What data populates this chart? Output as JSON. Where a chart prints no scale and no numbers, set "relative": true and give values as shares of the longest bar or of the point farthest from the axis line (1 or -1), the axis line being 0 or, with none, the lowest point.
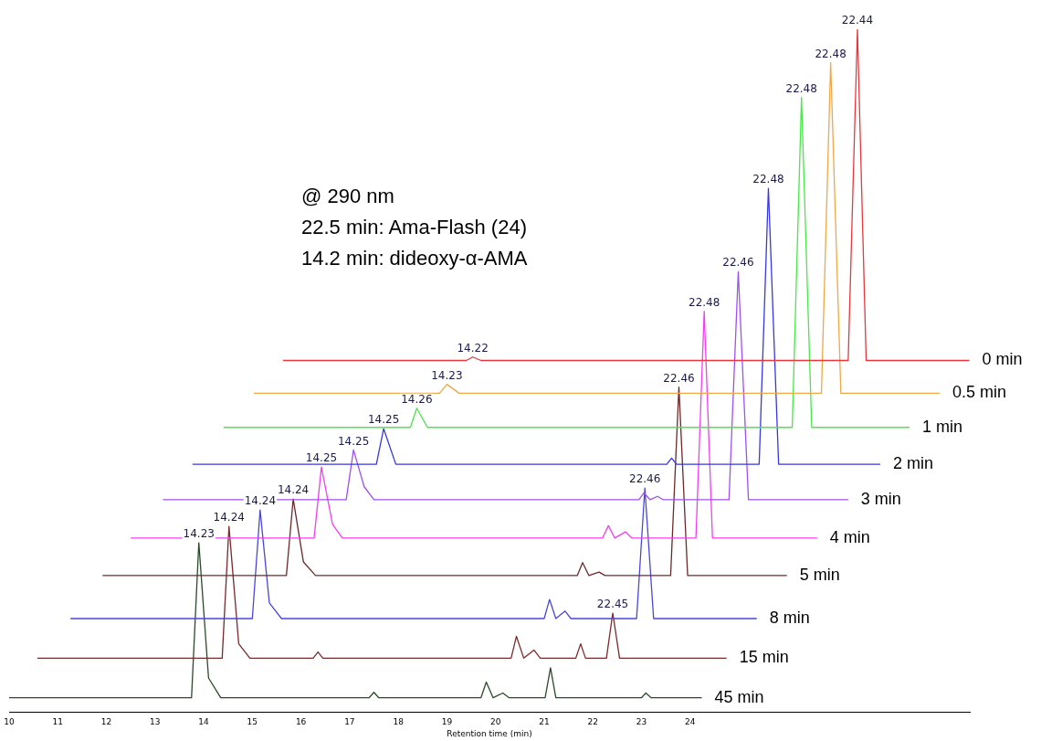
{
  "chart_data": {
    "type": "line",
    "relative": true,
    "xlabel": "Retention time (min)",
    "xlim": [
      10,
      29.75
    ],
    "xticks": [
      10,
      11,
      12,
      13,
      14,
      15,
      16,
      17,
      18,
      19,
      20,
      21,
      22,
      23,
      24
    ],
    "grid": false,
    "legend": false,
    "marker": "none",
    "line_style": "solid",
    "series": [
      {
        "name": "0 min",
        "color": "#e8383d",
        "x": [
          15.63,
          19.4,
          19.53,
          19.7,
          27.25,
          27.44,
          27.62,
          29.74
        ],
        "values": [
          0.515,
          0.515,
          0.52,
          0.515,
          0.515,
          1.0,
          0.515,
          0.515
        ]
      },
      {
        "name": "0.5 min",
        "color": "#f0a848",
        "x": [
          15.03,
          18.85,
          19.0,
          19.25,
          26.7,
          26.89,
          27.1,
          29.13
        ],
        "values": [
          0.467,
          0.467,
          0.48,
          0.467,
          0.467,
          0.951,
          0.467,
          0.467
        ]
      },
      {
        "name": "1 min",
        "color": "#48e848",
        "x": [
          14.41,
          18.25,
          18.38,
          18.6,
          26.1,
          26.29,
          26.5,
          28.51
        ],
        "values": [
          0.417,
          0.417,
          0.445,
          0.417,
          0.417,
          0.9,
          0.417,
          0.417
        ]
      },
      {
        "name": "2 min",
        "color": "#3838e0",
        "x": [
          13.77,
          17.55,
          17.7,
          17.95,
          23.52,
          23.62,
          23.72,
          25.42,
          25.61,
          25.82,
          27.91
        ],
        "values": [
          0.363,
          0.363,
          0.415,
          0.363,
          0.363,
          0.372,
          0.363,
          0.363,
          0.767,
          0.363,
          0.363
        ]
      },
      {
        "name": "3 min",
        "color": "#a050f0",
        "x": [
          13.16,
          16.93,
          17.08,
          17.3,
          17.5,
          22.95,
          23.05,
          23.18,
          23.33,
          23.45,
          24.8,
          24.99,
          25.2,
          27.25
        ],
        "values": [
          0.311,
          0.311,
          0.384,
          0.33,
          0.311,
          0.311,
          0.321,
          0.311,
          0.316,
          0.311,
          0.311,
          0.645,
          0.311,
          0.311
        ]
      },
      {
        "name": "4 min",
        "color": "#f040f0",
        "x": [
          12.5,
          16.27,
          16.42,
          16.65,
          16.85,
          22.2,
          22.32,
          22.45,
          22.67,
          22.8,
          24.12,
          24.29,
          24.46,
          26.61
        ],
        "values": [
          0.255,
          0.255,
          0.359,
          0.275,
          0.255,
          0.255,
          0.273,
          0.255,
          0.264,
          0.255,
          0.255,
          0.587,
          0.255,
          0.255
        ]
      },
      {
        "name": "5 min",
        "color": "#6b2a2a",
        "x": [
          11.92,
          15.7,
          15.84,
          16.05,
          16.3,
          21.68,
          21.79,
          21.92,
          22.13,
          22.25,
          23.6,
          23.77,
          23.95,
          25.99
        ],
        "values": [
          0.2,
          0.2,
          0.312,
          0.22,
          0.2,
          0.2,
          0.219,
          0.2,
          0.205,
          0.2,
          0.2,
          0.476,
          0.2,
          0.2
        ]
      },
      {
        "name": "8 min",
        "color": "#4848d8",
        "x": [
          11.26,
          15.0,
          15.16,
          15.35,
          15.6,
          21.0,
          21.11,
          21.24,
          21.43,
          21.55,
          22.9,
          23.07,
          23.25,
          25.37
        ],
        "values": [
          0.137,
          0.137,
          0.296,
          0.16,
          0.137,
          0.137,
          0.165,
          0.137,
          0.148,
          0.137,
          0.137,
          0.328,
          0.137,
          0.137
        ]
      },
      {
        "name": "15 min",
        "color": "#7a2a2a",
        "x": [
          10.58,
          14.38,
          14.52,
          14.72,
          14.95,
          16.25,
          16.35,
          16.45,
          20.32,
          20.43,
          20.58,
          20.79,
          20.92,
          21.65,
          21.75,
          21.85,
          22.28,
          22.41,
          22.55,
          24.75
        ],
        "values": [
          0.079,
          0.079,
          0.272,
          0.1,
          0.079,
          0.079,
          0.088,
          0.079,
          0.079,
          0.111,
          0.079,
          0.091,
          0.079,
          0.079,
          0.1,
          0.079,
          0.079,
          0.145,
          0.079,
          0.079
        ]
      },
      {
        "name": "45 min",
        "color": "#2a4a2a",
        "x": [
          10.0,
          13.75,
          13.9,
          14.1,
          14.35,
          17.4,
          17.5,
          17.6,
          19.7,
          19.81,
          19.95,
          20.15,
          20.28,
          21.02,
          21.13,
          21.24,
          23.0,
          23.09,
          23.2,
          24.24
        ],
        "values": [
          0.021,
          0.021,
          0.248,
          0.05,
          0.021,
          0.021,
          0.029,
          0.021,
          0.021,
          0.044,
          0.021,
          0.028,
          0.021,
          0.021,
          0.065,
          0.021,
          0.021,
          0.028,
          0.021,
          0.021
        ]
      }
    ],
    "annotations": [
      "@ 290 nm",
      "22.5 min: Ama-Flash (24)",
      "14.2 min: dideoxy-α-AMA",
      {
        "text": "14.22",
        "x": 19.53,
        "y": 0.52
      },
      {
        "text": "22.44",
        "x": 27.44,
        "y": 1.0
      },
      {
        "text": "14.23",
        "x": 19.0,
        "y": 0.48
      },
      {
        "text": "22.48",
        "x": 26.89,
        "y": 0.951
      },
      {
        "text": "14.26",
        "x": 18.38,
        "y": 0.445
      },
      {
        "text": "22.48",
        "x": 26.29,
        "y": 0.9
      },
      {
        "text": "14.25",
        "x": 17.7,
        "y": 0.415
      },
      {
        "text": "22.48",
        "x": 25.61,
        "y": 0.767
      },
      {
        "text": "14.25",
        "x": 17.08,
        "y": 0.384
      },
      {
        "text": "22.46",
        "x": 24.99,
        "y": 0.645
      },
      {
        "text": "14.25",
        "x": 16.42,
        "y": 0.359
      },
      {
        "text": "22.48",
        "x": 24.29,
        "y": 0.587
      },
      {
        "text": "14.24",
        "x": 15.84,
        "y": 0.312
      },
      {
        "text": "22.46",
        "x": 23.77,
        "y": 0.476
      },
      {
        "text": "14.24",
        "x": 15.16,
        "y": 0.296
      },
      {
        "text": "22.46",
        "x": 23.07,
        "y": 0.328
      },
      {
        "text": "14.24",
        "x": 14.52,
        "y": 0.272
      },
      {
        "text": "22.45",
        "x": 22.41,
        "y": 0.145
      },
      {
        "text": "14.23",
        "x": 13.9,
        "y": 0.248
      }
    ]
  }
}
